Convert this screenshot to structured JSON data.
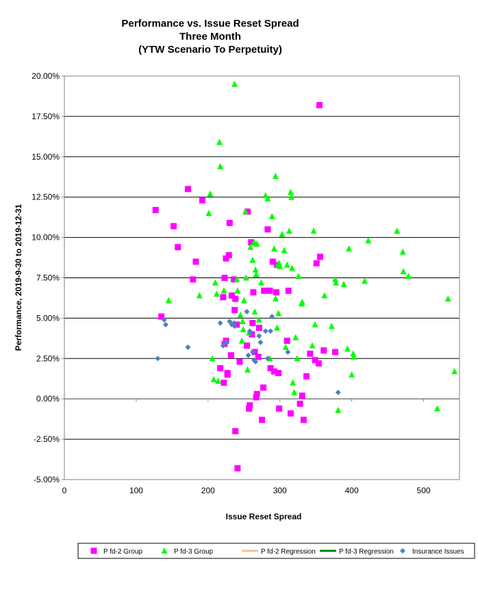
{
  "chart_data": {
    "type": "scatter",
    "title_lines": [
      "Performance vs. Issue Reset Spread",
      "Three Month",
      "(YTW Scenario To Perpetuity)"
    ],
    "xlabel": "Issue  Reset Spread",
    "ylabel": "Performance, 2019-9-30  to  2019-12-31",
    "xlim": [
      0,
      550
    ],
    "ylim": [
      -5,
      20
    ],
    "x_ticks": [
      0,
      100,
      200,
      300,
      400,
      500
    ],
    "y_ticks": [
      -5,
      -2.5,
      0,
      2.5,
      5,
      7.5,
      10,
      12.5,
      15,
      17.5,
      20
    ],
    "y_tick_labels": [
      "-5.00%",
      "-2.50%",
      "0.00%",
      "2.50%",
      "5.00%",
      "7.50%",
      "10.00%",
      "12.50%",
      "15.00%",
      "17.50%",
      "20.00%"
    ],
    "gridlines": "horizontal",
    "legend_position": "bottom",
    "legend": [
      {
        "label": "P fd-2 Group",
        "marker": "square",
        "color": "#ff00ff"
      },
      {
        "label": "P fd-3 Group",
        "marker": "triangle",
        "color": "#00ff00"
      },
      {
        "label": "P fd-2 Regression",
        "marker": "line",
        "color": "#f7c08c"
      },
      {
        "label": "P fd-3 Regression",
        "marker": "line",
        "color": "#008000"
      },
      {
        "label": "Insurance Issues",
        "marker": "diamond",
        "color": "#4f81bd"
      }
    ],
    "series": [
      {
        "name": "P fd-2 Group",
        "marker": "square",
        "color": "#ff00ff",
        "points": [
          [
            127,
            11.7
          ],
          [
            135,
            5.1
          ],
          [
            152,
            10.7
          ],
          [
            158,
            9.4
          ],
          [
            172,
            13.0
          ],
          [
            179,
            7.4
          ],
          [
            183,
            8.5
          ],
          [
            192,
            12.3
          ],
          [
            217,
            1.9
          ],
          [
            221,
            6.3
          ],
          [
            222,
            1.0
          ],
          [
            223,
            7.5
          ],
          [
            223,
            3.4
          ],
          [
            225,
            8.7
          ],
          [
            225,
            3.6
          ],
          [
            227,
            1.6
          ],
          [
            227,
            1.5
          ],
          [
            229,
            8.9
          ],
          [
            230,
            10.9
          ],
          [
            232,
            2.7
          ],
          [
            233,
            6.4
          ],
          [
            236,
            7.4
          ],
          [
            237,
            5.5
          ],
          [
            238,
            6.2
          ],
          [
            238,
            -2.0
          ],
          [
            240,
            4.6
          ],
          [
            241,
            -4.3
          ],
          [
            244,
            2.3
          ],
          [
            254,
            3.3
          ],
          [
            255,
            11.6
          ],
          [
            257,
            -0.6
          ],
          [
            258,
            -0.4
          ],
          [
            260,
            9.7
          ],
          [
            261,
            4.0
          ],
          [
            262,
            4.7
          ],
          [
            263,
            6.6
          ],
          [
            265,
            2.9
          ],
          [
            267,
            0.1
          ],
          [
            268,
            0.3
          ],
          [
            270,
            2.6
          ],
          [
            271,
            4.4
          ],
          [
            275,
            -1.3
          ],
          [
            277,
            0.7
          ],
          [
            278,
            6.7
          ],
          [
            283,
            10.5
          ],
          [
            286,
            6.7
          ],
          [
            287,
            1.9
          ],
          [
            290,
            8.5
          ],
          [
            292,
            1.7
          ],
          [
            295,
            6.6
          ],
          [
            296,
            8.3
          ],
          [
            298,
            1.6
          ],
          [
            299,
            -0.6
          ],
          [
            310,
            3.6
          ],
          [
            312,
            6.7
          ],
          [
            315,
            -0.9
          ],
          [
            328,
            -0.3
          ],
          [
            331,
            0.2
          ],
          [
            333,
            -1.3
          ],
          [
            337,
            1.4
          ],
          [
            342,
            2.8
          ],
          [
            349,
            2.4
          ],
          [
            351,
            8.4
          ],
          [
            354,
            2.2
          ],
          [
            355,
            18.2
          ],
          [
            356,
            8.8
          ],
          [
            361,
            3.0
          ],
          [
            377,
            2.9
          ]
        ]
      },
      {
        "name": "P fd-3 Group",
        "marker": "triangle",
        "color": "#00ff00",
        "points": [
          [
            145,
            6.1
          ],
          [
            188,
            6.4
          ],
          [
            201,
            11.5
          ],
          [
            203,
            12.7
          ],
          [
            206,
            2.5
          ],
          [
            208,
            1.2
          ],
          [
            210,
            7.2
          ],
          [
            212,
            6.5
          ],
          [
            214,
            1.1
          ],
          [
            216,
            15.9
          ],
          [
            217,
            14.4
          ],
          [
            222,
            6.7
          ],
          [
            237,
            19.5
          ],
          [
            240,
            7.4
          ],
          [
            241,
            6.7
          ],
          [
            245,
            5.2
          ],
          [
            247,
            3.6
          ],
          [
            248,
            4.8
          ],
          [
            249,
            4.3
          ],
          [
            250,
            6.1
          ],
          [
            252,
            11.6
          ],
          [
            253,
            7.5
          ],
          [
            255,
            1.8
          ],
          [
            257,
            4.1
          ],
          [
            259,
            9.4
          ],
          [
            262,
            8.6
          ],
          [
            264,
            9.7
          ],
          [
            265,
            5.4
          ],
          [
            266,
            8.0
          ],
          [
            267,
            7.7
          ],
          [
            268,
            9.6
          ],
          [
            271,
            4.9
          ],
          [
            274,
            7.2
          ],
          [
            280,
            12.6
          ],
          [
            283,
            12.4
          ],
          [
            286,
            2.5
          ],
          [
            289,
            11.3
          ],
          [
            292,
            9.3
          ],
          [
            294,
            6.2
          ],
          [
            294,
            13.8
          ],
          [
            296,
            4.4
          ],
          [
            297,
            8.3
          ],
          [
            298,
            5.3
          ],
          [
            299,
            8.4
          ],
          [
            300,
            8.2
          ],
          [
            303,
            10.2
          ],
          [
            306,
            9.2
          ],
          [
            308,
            3.2
          ],
          [
            310,
            8.3
          ],
          [
            313,
            10.4
          ],
          [
            315,
            12.8
          ],
          [
            316,
            12.5
          ],
          [
            317,
            8.1
          ],
          [
            318,
            1.0
          ],
          [
            320,
            0.4
          ],
          [
            322,
            3.8
          ],
          [
            324,
            2.5
          ],
          [
            326,
            7.6
          ],
          [
            330,
            5.9
          ],
          [
            331,
            6.0
          ],
          [
            345,
            3.3
          ],
          [
            347,
            10.4
          ],
          [
            349,
            4.6
          ],
          [
            362,
            6.4
          ],
          [
            372,
            4.5
          ],
          [
            377,
            7.4
          ],
          [
            378,
            7.2
          ],
          [
            381,
            -0.7
          ],
          [
            389,
            7.1
          ],
          [
            394,
            3.1
          ],
          [
            396,
            9.3
          ],
          [
            400,
            1.5
          ],
          [
            402,
            2.8
          ],
          [
            403,
            2.6
          ],
          [
            418,
            7.3
          ],
          [
            423,
            9.8
          ],
          [
            463,
            10.4
          ],
          [
            471,
            9.1
          ],
          [
            472,
            7.9
          ],
          [
            479,
            7.6
          ],
          [
            519,
            -0.6
          ],
          [
            534,
            6.2
          ],
          [
            543,
            1.7
          ]
        ]
      },
      {
        "name": "Insurance Issues",
        "marker": "diamond",
        "color": "#4f81bd",
        "points": [
          [
            130,
            2.5
          ],
          [
            139,
            4.9
          ],
          [
            141,
            4.6
          ],
          [
            172,
            3.2
          ],
          [
            217,
            4.7
          ],
          [
            221,
            3.3
          ],
          [
            225,
            3.5
          ],
          [
            230,
            4.8
          ],
          [
            233,
            4.6
          ],
          [
            236,
            4.7
          ],
          [
            237,
            4.5
          ],
          [
            254,
            5.4
          ],
          [
            256,
            2.7
          ],
          [
            258,
            4.2
          ],
          [
            259,
            4.1
          ],
          [
            262,
            2.9
          ],
          [
            264,
            2.4
          ],
          [
            266,
            2.3
          ],
          [
            271,
            3.9
          ],
          [
            273,
            3.5
          ],
          [
            280,
            4.2
          ],
          [
            283,
            2.5
          ],
          [
            287,
            4.2
          ],
          [
            289,
            5.1
          ],
          [
            311,
            2.9
          ],
          [
            381,
            0.4
          ]
        ]
      }
    ]
  }
}
